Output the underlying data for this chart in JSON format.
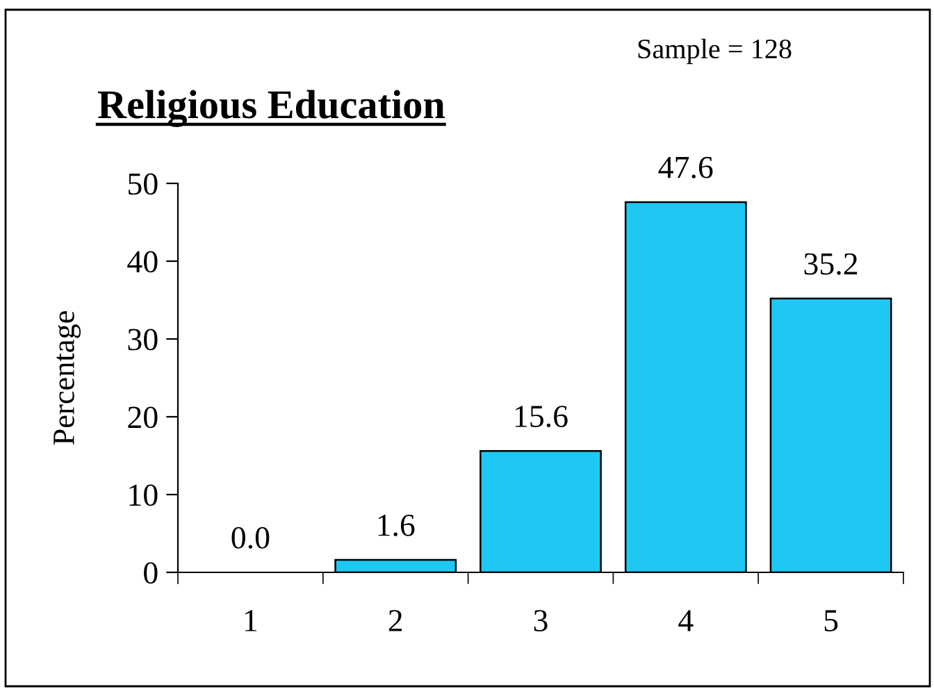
{
  "chart_data": {
    "type": "bar",
    "title": "Religious Education",
    "annotations": [
      "Sample = 128"
    ],
    "ylabel": "Percentage",
    "categories": [
      "1",
      "2",
      "3",
      "4",
      "5"
    ],
    "values": [
      0.0,
      1.6,
      15.6,
      47.6,
      35.2
    ],
    "value_labels": [
      "0.0",
      "1.6",
      "15.6",
      "47.6",
      "35.2"
    ],
    "color": "#1ec8f2",
    "ylim": [
      0,
      50
    ],
    "yticks": [
      0,
      10,
      20,
      30,
      40,
      50
    ],
    "grid": false,
    "legend": false
  }
}
